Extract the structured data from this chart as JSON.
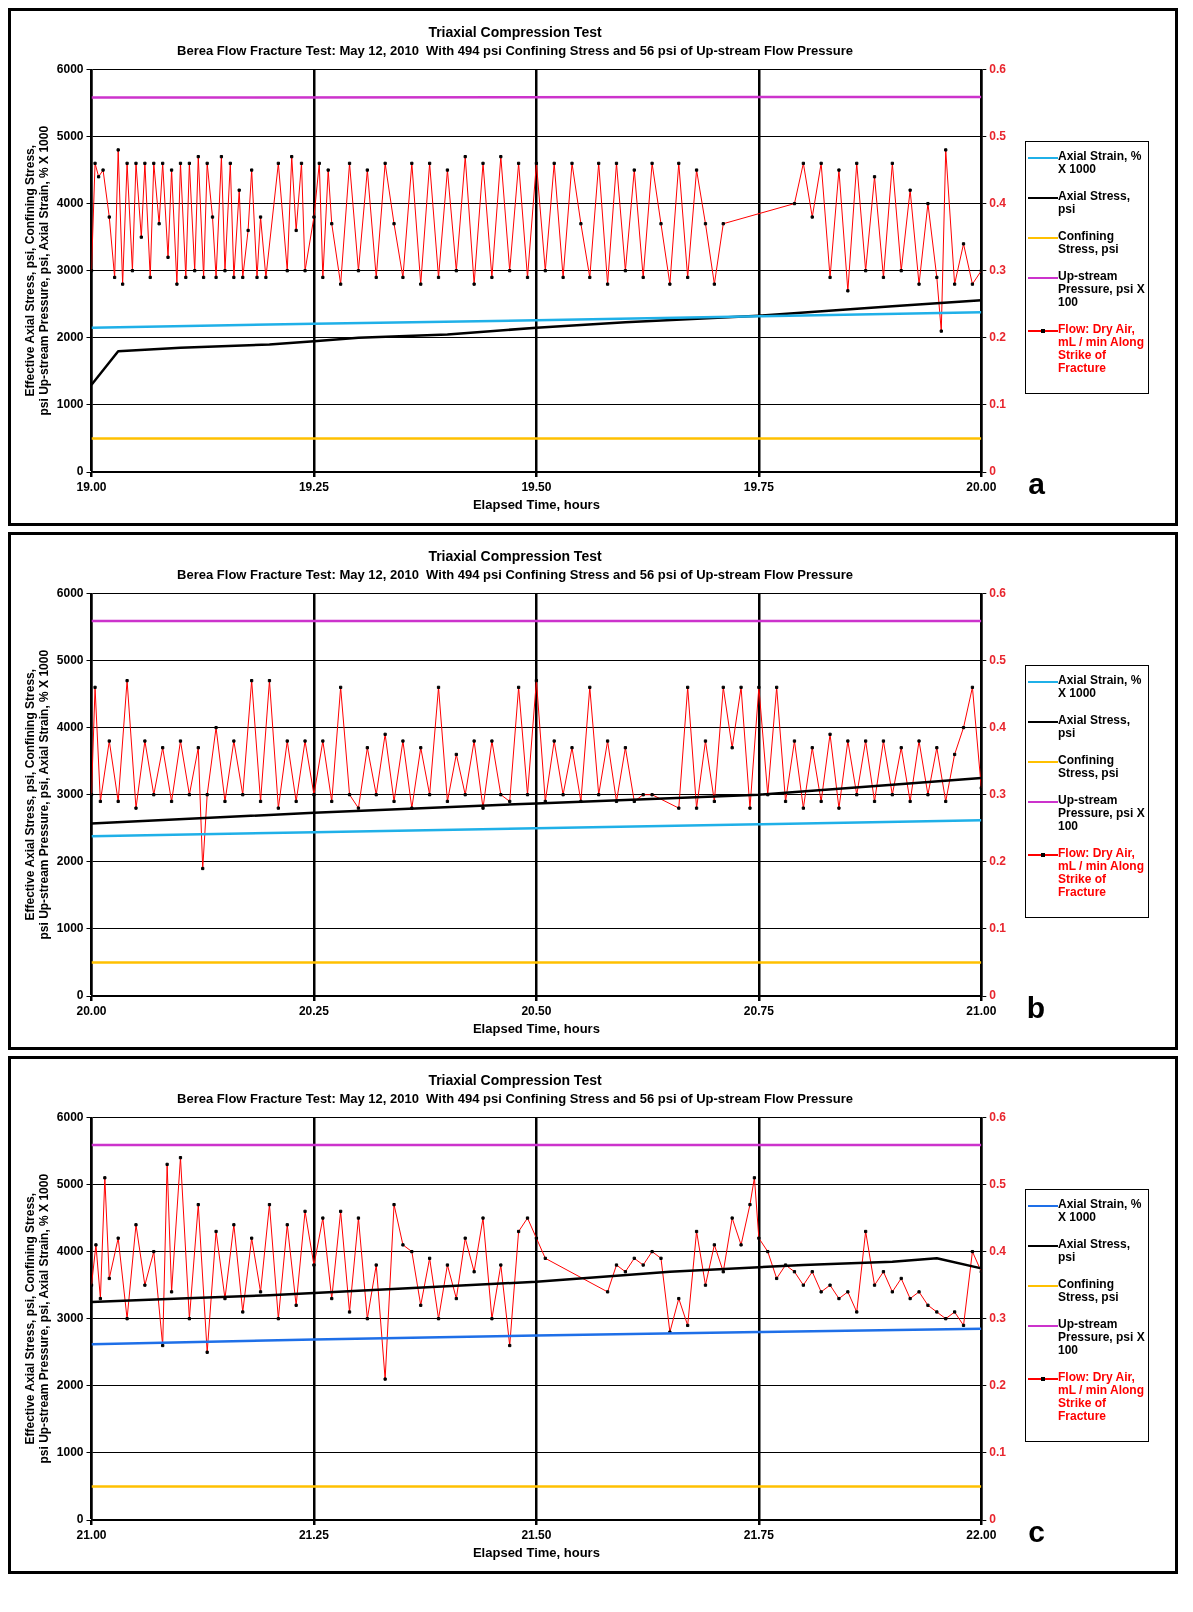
{
  "chart_data": [
    {
      "type": "line",
      "title": "Triaxial Compression Test",
      "subtitle": "Berea Flow Fracture Test: May 12, 2010  With 494 psi Confining Stress and 56 psi of Up-stream Flow Pressure",
      "xlabel": "Elapsed Time, hours",
      "ylabel": "Effective Axial Stress, psi, Confining Stress, psi Up-stream Pressure, psi, Axial Strain, % X 1000",
      "annotations": [
        "a"
      ],
      "xlim": [
        19,
        20
      ],
      "xticks": [
        {
          "value": 19,
          "label": "19.00"
        },
        {
          "value": 19.25,
          "label": "19.25"
        },
        {
          "value": 19.5,
          "label": "19.50"
        },
        {
          "value": 19.75,
          "label": "19.75"
        },
        {
          "value": 20,
          "label": "20.00"
        }
      ],
      "ylim": [
        0,
        6000
      ],
      "yticks": [
        0,
        1000,
        2000,
        3000,
        4000,
        5000,
        6000
      ],
      "y2lim": [
        0,
        0.6
      ],
      "y2ticks": [
        0,
        0.1,
        0.2,
        0.3,
        0.4,
        0.5,
        0.6
      ],
      "grid": true,
      "legend": "right",
      "marker": "none",
      "series": [
        {
          "name": "Axial Strain, % X 1000",
          "color": "#1fb0e8",
          "x": [
            19,
            19.25,
            19.5,
            19.75,
            20
          ],
          "values": [
            2150,
            2210,
            2260,
            2320,
            2380
          ]
        },
        {
          "name": "Axial Stress, psi",
          "color": "#000000",
          "x": [
            19,
            19.03,
            19.1,
            19.2,
            19.25,
            19.3,
            19.4,
            19.5,
            19.6,
            19.75,
            19.9,
            20
          ],
          "values": [
            1300,
            1800,
            1850,
            1900,
            1950,
            2000,
            2050,
            2150,
            2230,
            2330,
            2470,
            2560
          ]
        },
        {
          "name": "Confining Stress, psi",
          "color": "#ffc000",
          "x": [
            19,
            20
          ],
          "values": [
            500,
            500
          ]
        },
        {
          "name": "Up-stream Pressure, psi X 100",
          "color": "#cc33cc",
          "x": [
            19,
            20
          ],
          "values": [
            5580,
            5590
          ]
        },
        {
          "name": "Flow: Dry Air, mL / min Along Strike of Fracture",
          "color": "#ff0000",
          "axis": "y2",
          "marker": "square",
          "x": [
            19,
            19.004,
            19.008,
            19.013,
            19.02,
            19.026,
            19.03,
            19.035,
            19.04,
            19.046,
            19.05,
            19.056,
            19.06,
            19.066,
            19.07,
            19.076,
            19.08,
            19.086,
            19.09,
            19.096,
            19.1,
            19.106,
            19.11,
            19.116,
            19.12,
            19.126,
            19.13,
            19.136,
            19.14,
            19.146,
            19.15,
            19.156,
            19.16,
            19.166,
            19.17,
            19.176,
            19.18,
            19.186,
            19.19,
            19.196,
            19.21,
            19.22,
            19.225,
            19.23,
            19.236,
            19.24,
            19.25,
            19.256,
            19.26,
            19.266,
            19.27,
            19.28,
            19.29,
            19.3,
            19.31,
            19.32,
            19.33,
            19.34,
            19.35,
            19.36,
            19.37,
            19.38,
            19.39,
            19.4,
            19.41,
            19.42,
            19.43,
            19.44,
            19.45,
            19.46,
            19.47,
            19.48,
            19.49,
            19.5,
            19.51,
            19.52,
            19.53,
            19.54,
            19.55,
            19.56,
            19.57,
            19.58,
            19.59,
            19.6,
            19.61,
            19.62,
            19.63,
            19.64,
            19.65,
            19.66,
            19.67,
            19.68,
            19.69,
            19.7,
            19.71,
            19.79,
            19.8,
            19.81,
            19.82,
            19.83,
            19.84,
            19.85,
            19.86,
            19.87,
            19.88,
            19.89,
            19.9,
            19.91,
            19.92,
            19.93,
            19.94,
            19.95,
            19.955,
            19.96,
            19.97,
            19.98,
            19.99,
            20
          ],
          "values": [
            0.3,
            0.46,
            0.44,
            0.45,
            0.38,
            0.29,
            0.48,
            0.28,
            0.46,
            0.3,
            0.46,
            0.35,
            0.46,
            0.29,
            0.46,
            0.37,
            0.46,
            0.32,
            0.45,
            0.28,
            0.46,
            0.29,
            0.46,
            0.3,
            0.47,
            0.29,
            0.46,
            0.38,
            0.29,
            0.47,
            0.3,
            0.46,
            0.29,
            0.42,
            0.29,
            0.36,
            0.45,
            0.29,
            0.38,
            0.29,
            0.46,
            0.3,
            0.47,
            0.36,
            0.46,
            0.3,
            0.38,
            0.46,
            0.29,
            0.45,
            0.37,
            0.28,
            0.46,
            0.3,
            0.45,
            0.29,
            0.46,
            0.37,
            0.29,
            0.46,
            0.28,
            0.46,
            0.29,
            0.45,
            0.3,
            0.47,
            0.28,
            0.46,
            0.29,
            0.47,
            0.3,
            0.46,
            0.29,
            0.46,
            0.3,
            0.46,
            0.29,
            0.46,
            0.37,
            0.29,
            0.46,
            0.28,
            0.46,
            0.3,
            0.45,
            0.29,
            0.46,
            0.37,
            0.28,
            0.46,
            0.29,
            0.45,
            0.37,
            0.28,
            0.37,
            0.4,
            0.46,
            0.38,
            0.46,
            0.29,
            0.45,
            0.27,
            0.46,
            0.3,
            0.44,
            0.29,
            0.46,
            0.3,
            0.42,
            0.28,
            0.4,
            0.29,
            0.21,
            0.48,
            0.28,
            0.34,
            0.28,
            0.3
          ]
        }
      ]
    },
    {
      "type": "line",
      "title": "Triaxial Compression Test",
      "subtitle": "Berea Flow Fracture Test: May 12, 2010  With 494 psi Confining Stress and 56 psi of Up-stream Flow Pressure",
      "xlabel": "Elapsed Time, hours",
      "ylabel": "Effective Axial Stress, psi, Confining Stress, psi Up-stream Pressure, psi, Axial Strain, % X 1000",
      "annotations": [
        "b"
      ],
      "xlim": [
        20,
        21
      ],
      "xticks": [
        {
          "value": 20,
          "label": "20.00"
        },
        {
          "value": 20.25,
          "label": "20.25"
        },
        {
          "value": 20.5,
          "label": "20.50"
        },
        {
          "value": 20.75,
          "label": "20.75"
        },
        {
          "value": 21,
          "label": "21.00"
        }
      ],
      "ylim": [
        0,
        6000
      ],
      "yticks": [
        0,
        1000,
        2000,
        3000,
        4000,
        5000,
        6000
      ],
      "y2lim": [
        0,
        0.6
      ],
      "y2ticks": [
        0,
        0.1,
        0.2,
        0.3,
        0.4,
        0.5,
        0.6
      ],
      "grid": true,
      "legend": "right",
      "marker": "none",
      "series": [
        {
          "name": "Axial Strain, % X 1000",
          "color": "#1fb0e8",
          "x": [
            20,
            20.25,
            20.5,
            20.75,
            21
          ],
          "values": [
            2380,
            2440,
            2500,
            2560,
            2620
          ]
        },
        {
          "name": "Axial Stress, psi",
          "color": "#000000",
          "x": [
            20,
            20.25,
            20.5,
            20.75,
            20.9,
            21
          ],
          "values": [
            2570,
            2730,
            2870,
            3000,
            3150,
            3250
          ]
        },
        {
          "name": "Confining Stress, psi",
          "color": "#ffc000",
          "x": [
            20,
            21
          ],
          "values": [
            500,
            500
          ]
        },
        {
          "name": "Up-stream Pressure, psi X 100",
          "color": "#cc33cc",
          "x": [
            20,
            21
          ],
          "values": [
            5590,
            5590
          ]
        },
        {
          "name": "Flow: Dry Air, mL / min Along Strike of Fracture",
          "color": "#ff0000",
          "axis": "y2",
          "marker": "square",
          "x": [
            20,
            20.004,
            20.01,
            20.02,
            20.03,
            20.04,
            20.05,
            20.06,
            20.07,
            20.08,
            20.09,
            20.1,
            20.11,
            20.12,
            20.125,
            20.13,
            20.14,
            20.15,
            20.16,
            20.17,
            20.18,
            20.19,
            20.2,
            20.21,
            20.22,
            20.23,
            20.24,
            20.25,
            20.26,
            20.27,
            20.28,
            20.29,
            20.3,
            20.31,
            20.32,
            20.33,
            20.34,
            20.35,
            20.36,
            20.37,
            20.38,
            20.39,
            20.4,
            20.41,
            20.42,
            20.43,
            20.44,
            20.45,
            20.46,
            20.47,
            20.48,
            20.49,
            20.5,
            20.51,
            20.52,
            20.53,
            20.54,
            20.55,
            20.56,
            20.57,
            20.58,
            20.59,
            20.6,
            20.61,
            20.62,
            20.63,
            20.66,
            20.67,
            20.68,
            20.69,
            20.7,
            20.71,
            20.72,
            20.73,
            20.74,
            20.75,
            20.76,
            20.77,
            20.78,
            20.79,
            20.8,
            20.81,
            20.82,
            20.83,
            20.84,
            20.85,
            20.86,
            20.87,
            20.88,
            20.89,
            20.9,
            20.91,
            20.92,
            20.93,
            20.94,
            20.95,
            20.96,
            20.97,
            20.98,
            20.99,
            21
          ],
          "values": [
            0.3,
            0.46,
            0.29,
            0.38,
            0.29,
            0.47,
            0.28,
            0.38,
            0.3,
            0.37,
            0.29,
            0.38,
            0.3,
            0.37,
            0.19,
            0.3,
            0.4,
            0.29,
            0.38,
            0.3,
            0.47,
            0.29,
            0.47,
            0.28,
            0.38,
            0.29,
            0.38,
            0.3,
            0.38,
            0.29,
            0.46,
            0.3,
            0.28,
            0.37,
            0.3,
            0.39,
            0.29,
            0.38,
            0.28,
            0.37,
            0.3,
            0.46,
            0.29,
            0.36,
            0.3,
            0.38,
            0.28,
            0.38,
            0.3,
            0.29,
            0.46,
            0.3,
            0.47,
            0.29,
            0.38,
            0.3,
            0.37,
            0.29,
            0.46,
            0.3,
            0.38,
            0.29,
            0.37,
            0.29,
            0.3,
            0.3,
            0.28,
            0.46,
            0.28,
            0.38,
            0.29,
            0.46,
            0.37,
            0.46,
            0.28,
            0.46,
            0.3,
            0.46,
            0.29,
            0.38,
            0.28,
            0.37,
            0.29,
            0.39,
            0.28,
            0.38,
            0.3,
            0.38,
            0.29,
            0.38,
            0.3,
            0.37,
            0.29,
            0.38,
            0.3,
            0.37,
            0.29,
            0.36,
            0.4,
            0.46,
            0.31
          ]
        }
      ]
    },
    {
      "type": "line",
      "title": "Triaxial Compression Test",
      "subtitle": "Berea Flow Fracture Test: May 12, 2010  With 494 psi Confining Stress and 56 psi of Up-stream Flow Pressure",
      "xlabel": "Elapsed Time, hours",
      "ylabel": "Effective Axial Stress, psi, Confining Stress, psi Up-stream Pressure, psi, Axial Strain, % X 1000",
      "annotations": [
        "c"
      ],
      "xlim": [
        21,
        22
      ],
      "xticks": [
        {
          "value": 21,
          "label": "21.00"
        },
        {
          "value": 21.25,
          "label": "21.25"
        },
        {
          "value": 21.5,
          "label": "21.50"
        },
        {
          "value": 21.75,
          "label": "21.75"
        },
        {
          "value": 22,
          "label": "22.00"
        }
      ],
      "ylim": [
        0,
        6000
      ],
      "yticks": [
        0,
        1000,
        2000,
        3000,
        4000,
        5000,
        6000
      ],
      "y2lim": [
        0,
        0.6
      ],
      "y2ticks": [
        0,
        0.1,
        0.2,
        0.3,
        0.4,
        0.5,
        0.6
      ],
      "grid": true,
      "legend": "right",
      "marker": "none",
      "series": [
        {
          "name": "Axial Strain, % X 1000",
          "color": "#1e6fe8",
          "x": [
            21,
            21.25,
            21.5,
            21.75,
            22
          ],
          "values": [
            2620,
            2690,
            2750,
            2800,
            2850
          ]
        },
        {
          "name": "Axial Stress, psi",
          "color": "#000000",
          "x": [
            21,
            21.1,
            21.2,
            21.35,
            21.5,
            21.65,
            21.8,
            21.9,
            21.95,
            22
          ],
          "values": [
            3250,
            3300,
            3350,
            3450,
            3550,
            3700,
            3800,
            3850,
            3900,
            3750
          ]
        },
        {
          "name": "Confining Stress, psi",
          "color": "#ffc000",
          "x": [
            21,
            22
          ],
          "values": [
            500,
            500
          ]
        },
        {
          "name": "Up-stream Pressure, psi X 100",
          "color": "#cc33cc",
          "x": [
            21,
            22
          ],
          "values": [
            5590,
            5590
          ]
        },
        {
          "name": "Flow: Dry Air, mL / min Along Strike of Fracture",
          "color": "#ff0000",
          "axis": "y2",
          "marker": "square",
          "x": [
            21,
            21.005,
            21.01,
            21.015,
            21.02,
            21.03,
            21.04,
            21.05,
            21.06,
            21.07,
            21.08,
            21.085,
            21.09,
            21.1,
            21.11,
            21.12,
            21.13,
            21.14,
            21.15,
            21.16,
            21.17,
            21.18,
            21.19,
            21.2,
            21.21,
            21.22,
            21.23,
            21.24,
            21.25,
            21.26,
            21.27,
            21.28,
            21.29,
            21.3,
            21.31,
            21.32,
            21.33,
            21.34,
            21.35,
            21.36,
            21.37,
            21.38,
            21.39,
            21.4,
            21.41,
            21.42,
            21.43,
            21.44,
            21.45,
            21.46,
            21.47,
            21.48,
            21.49,
            21.5,
            21.51,
            21.58,
            21.59,
            21.6,
            21.61,
            21.62,
            21.63,
            21.64,
            21.65,
            21.66,
            21.67,
            21.68,
            21.69,
            21.7,
            21.71,
            21.72,
            21.73,
            21.74,
            21.745,
            21.75,
            21.76,
            21.77,
            21.78,
            21.79,
            21.8,
            21.81,
            21.82,
            21.83,
            21.84,
            21.85,
            21.86,
            21.87,
            21.88,
            21.89,
            21.9,
            21.91,
            21.92,
            21.93,
            21.94,
            21.95,
            21.96,
            21.97,
            21.98,
            21.99,
            22
          ],
          "values": [
            0.35,
            0.41,
            0.33,
            0.51,
            0.36,
            0.42,
            0.3,
            0.44,
            0.35,
            0.4,
            0.26,
            0.53,
            0.34,
            0.54,
            0.3,
            0.47,
            0.25,
            0.43,
            0.33,
            0.44,
            0.31,
            0.42,
            0.34,
            0.47,
            0.3,
            0.44,
            0.32,
            0.46,
            0.38,
            0.45,
            0.33,
            0.46,
            0.31,
            0.45,
            0.3,
            0.38,
            0.21,
            0.47,
            0.41,
            0.4,
            0.32,
            0.39,
            0.3,
            0.38,
            0.33,
            0.42,
            0.37,
            0.45,
            0.3,
            0.38,
            0.26,
            0.43,
            0.45,
            0.42,
            0.39,
            0.34,
            0.38,
            0.37,
            0.39,
            0.38,
            0.4,
            0.39,
            0.28,
            0.33,
            0.29,
            0.43,
            0.35,
            0.41,
            0.37,
            0.45,
            0.41,
            0.47,
            0.51,
            0.42,
            0.4,
            0.36,
            0.38,
            0.37,
            0.35,
            0.37,
            0.34,
            0.35,
            0.33,
            0.34,
            0.31,
            0.43,
            0.35,
            0.37,
            0.34,
            0.36,
            0.33,
            0.34,
            0.32,
            0.31,
            0.3,
            0.31,
            0.29,
            0.4,
            0.37
          ]
        }
      ]
    }
  ]
}
